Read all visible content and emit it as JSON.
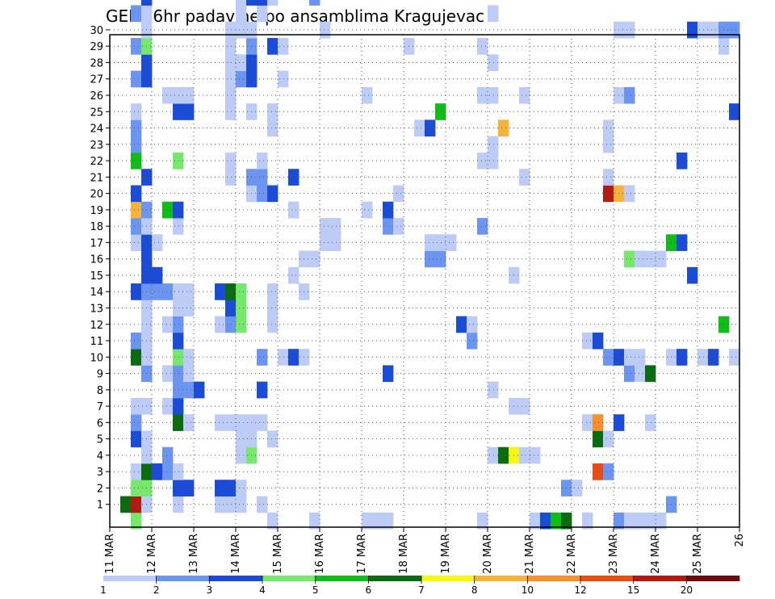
{
  "chart_data": {
    "type": "heatmap",
    "title": "GEFS 6hr padavine po ansamblima Kragujevac",
    "x_tick_labels": [
      "11 MAR",
      "12 MAR",
      "13 MAR",
      "14 MAR",
      "15 MAR",
      "16 MAR",
      "17 MAR",
      "18 MAR",
      "19 MAR",
      "20 MAR",
      "21 MAR",
      "22 MAR",
      "23 MAR",
      "24 MAR",
      "25 MAR",
      "26"
    ],
    "y_tick_labels": [
      "1",
      "2",
      "3",
      "4",
      "5",
      "6",
      "7",
      "8",
      "9",
      "10",
      "11",
      "12",
      "13",
      "14",
      "15",
      "16",
      "17",
      "18",
      "19",
      "20",
      "21",
      "22",
      "23",
      "24",
      "25",
      "26",
      "27",
      "28",
      "29",
      "30"
    ],
    "xlim": [
      0,
      60
    ],
    "ylim": [
      0,
      30
    ],
    "grid": true,
    "colorbar": {
      "levels": [
        1,
        2,
        3,
        4,
        5,
        6,
        7,
        8,
        10,
        12,
        15,
        20
      ],
      "colors": [
        "#bcccf6",
        "#6b95f0",
        "#1b4cd8",
        "#76e96d",
        "#10bc17",
        "#0b6b10",
        "#f7f714",
        "#f5b33c",
        "#f5902d",
        "#ea4a14",
        "#b51a12",
        "#6e0a0a"
      ]
    },
    "cells": [
      [
        2,
        0,
        4
      ],
      [
        1,
        1,
        6
      ],
      [
        2,
        1,
        11
      ],
      [
        15,
        0,
        1
      ],
      [
        19,
        0,
        1
      ],
      [
        24,
        0,
        1
      ],
      [
        25,
        0,
        1
      ],
      [
        26,
        0,
        1
      ],
      [
        40,
        0,
        1
      ],
      [
        35,
        0,
        1
      ],
      [
        41,
        0,
        3
      ],
      [
        42,
        0,
        5
      ],
      [
        43,
        0,
        6
      ],
      [
        45,
        0,
        1
      ],
      [
        48,
        0,
        2
      ],
      [
        49,
        0,
        1
      ],
      [
        50,
        0,
        1
      ],
      [
        51,
        0,
        1
      ],
      [
        52,
        0,
        1
      ],
      [
        3,
        1,
        1
      ],
      [
        6,
        1,
        1
      ],
      [
        10,
        1,
        1
      ],
      [
        11,
        1,
        1
      ],
      [
        12,
        1,
        1
      ],
      [
        14,
        1,
        1
      ],
      [
        53,
        1,
        2
      ],
      [
        2,
        2,
        4
      ],
      [
        3,
        2,
        4
      ],
      [
        6,
        2,
        3
      ],
      [
        7,
        2,
        3
      ],
      [
        10,
        2,
        3
      ],
      [
        11,
        2,
        3
      ],
      [
        12,
        2,
        1
      ],
      [
        43,
        2,
        2
      ],
      [
        44,
        2,
        1
      ],
      [
        2,
        3,
        1
      ],
      [
        3,
        3,
        6
      ],
      [
        4,
        3,
        3
      ],
      [
        5,
        3,
        2
      ],
      [
        6,
        3,
        1
      ],
      [
        46,
        3,
        10
      ],
      [
        47,
        3,
        2
      ],
      [
        3,
        4,
        1
      ],
      [
        5,
        4,
        2
      ],
      [
        12,
        4,
        1
      ],
      [
        13,
        4,
        4
      ],
      [
        36,
        4,
        1
      ],
      [
        37,
        4,
        6
      ],
      [
        38,
        4,
        7
      ],
      [
        39,
        4,
        1
      ],
      [
        40,
        4,
        1
      ],
      [
        2,
        5,
        3
      ],
      [
        3,
        5,
        1
      ],
      [
        12,
        5,
        1
      ],
      [
        13,
        5,
        1
      ],
      [
        15,
        5,
        1
      ],
      [
        46,
        5,
        6
      ],
      [
        47,
        5,
        1
      ],
      [
        2,
        6,
        2
      ],
      [
        6,
        6,
        6
      ],
      [
        7,
        6,
        1
      ],
      [
        10,
        6,
        1
      ],
      [
        11,
        6,
        1
      ],
      [
        12,
        6,
        1
      ],
      [
        13,
        6,
        1
      ],
      [
        14,
        6,
        1
      ],
      [
        45,
        6,
        1
      ],
      [
        46,
        6,
        9
      ],
      [
        48,
        6,
        3
      ],
      [
        51,
        6,
        1
      ],
      [
        2,
        7,
        1
      ],
      [
        3,
        7,
        1
      ],
      [
        5,
        7,
        1
      ],
      [
        6,
        7,
        3
      ],
      [
        38,
        7,
        1
      ],
      [
        39,
        7,
        1
      ],
      [
        6,
        8,
        2
      ],
      [
        7,
        8,
        2
      ],
      [
        8,
        8,
        3
      ],
      [
        14,
        8,
        3
      ],
      [
        36,
        8,
        1
      ],
      [
        3,
        9,
        2
      ],
      [
        5,
        9,
        1
      ],
      [
        6,
        9,
        2
      ],
      [
        7,
        9,
        1
      ],
      [
        26,
        9,
        3
      ],
      [
        49,
        9,
        2
      ],
      [
        50,
        9,
        1
      ],
      [
        51,
        9,
        6
      ],
      [
        2,
        10,
        6
      ],
      [
        3,
        10,
        1
      ],
      [
        6,
        10,
        4
      ],
      [
        7,
        10,
        1
      ],
      [
        14,
        10,
        2
      ],
      [
        16,
        10,
        1
      ],
      [
        17,
        10,
        3
      ],
      [
        18,
        10,
        1
      ],
      [
        47,
        10,
        2
      ],
      [
        48,
        10,
        3
      ],
      [
        49,
        10,
        1
      ],
      [
        50,
        10,
        1
      ],
      [
        53,
        10,
        1
      ],
      [
        54,
        10,
        3
      ],
      [
        56,
        10,
        1
      ],
      [
        57,
        10,
        3
      ],
      [
        59,
        10,
        1
      ],
      [
        2,
        11,
        2
      ],
      [
        3,
        11,
        1
      ],
      [
        6,
        11,
        3
      ],
      [
        34,
        11,
        2
      ],
      [
        45,
        11,
        1
      ],
      [
        46,
        11,
        3
      ],
      [
        3,
        12,
        1
      ],
      [
        5,
        12,
        1
      ],
      [
        6,
        12,
        2
      ],
      [
        10,
        12,
        1
      ],
      [
        11,
        12,
        2
      ],
      [
        12,
        12,
        4
      ],
      [
        15,
        12,
        1
      ],
      [
        33,
        12,
        3
      ],
      [
        34,
        12,
        1
      ],
      [
        58,
        12,
        5
      ],
      [
        3,
        13,
        1
      ],
      [
        6,
        13,
        1
      ],
      [
        7,
        13,
        1
      ],
      [
        11,
        13,
        3
      ],
      [
        12,
        13,
        4
      ],
      [
        15,
        13,
        1
      ],
      [
        2,
        14,
        3
      ],
      [
        3,
        14,
        2
      ],
      [
        4,
        14,
        2
      ],
      [
        5,
        14,
        2
      ],
      [
        6,
        14,
        1
      ],
      [
        7,
        14,
        1
      ],
      [
        10,
        14,
        3
      ],
      [
        11,
        14,
        6
      ],
      [
        12,
        14,
        4
      ],
      [
        15,
        14,
        1
      ],
      [
        18,
        14,
        1
      ],
      [
        3,
        15,
        3
      ],
      [
        4,
        15,
        3
      ],
      [
        17,
        15,
        1
      ],
      [
        38,
        15,
        1
      ],
      [
        55,
        15,
        3
      ],
      [
        3,
        16,
        3
      ],
      [
        18,
        16,
        1
      ],
      [
        19,
        16,
        1
      ],
      [
        30,
        16,
        2
      ],
      [
        31,
        16,
        2
      ],
      [
        49,
        16,
        4
      ],
      [
        50,
        16,
        1
      ],
      [
        51,
        16,
        1
      ],
      [
        52,
        16,
        1
      ],
      [
        2,
        17,
        1
      ],
      [
        3,
        17,
        3
      ],
      [
        4,
        17,
        1
      ],
      [
        20,
        17,
        1
      ],
      [
        21,
        17,
        1
      ],
      [
        30,
        17,
        1
      ],
      [
        31,
        17,
        1
      ],
      [
        32,
        17,
        1
      ],
      [
        53,
        17,
        5
      ],
      [
        54,
        17,
        3
      ],
      [
        2,
        18,
        2
      ],
      [
        3,
        18,
        1
      ],
      [
        6,
        18,
        1
      ],
      [
        20,
        18,
        1
      ],
      [
        21,
        18,
        1
      ],
      [
        26,
        18,
        2
      ],
      [
        27,
        18,
        1
      ],
      [
        35,
        18,
        2
      ],
      [
        2,
        19,
        8
      ],
      [
        3,
        19,
        2
      ],
      [
        5,
        19,
        5
      ],
      [
        6,
        19,
        3
      ],
      [
        17,
        19,
        1
      ],
      [
        24,
        19,
        1
      ],
      [
        26,
        19,
        3
      ],
      [
        2,
        20,
        3
      ],
      [
        13,
        20,
        1
      ],
      [
        14,
        20,
        2
      ],
      [
        15,
        20,
        3
      ],
      [
        27,
        20,
        1
      ],
      [
        47,
        20,
        11
      ],
      [
        48,
        20,
        8
      ],
      [
        49,
        20,
        1
      ],
      [
        3,
        21,
        3
      ],
      [
        11,
        21,
        1
      ],
      [
        13,
        21,
        2
      ],
      [
        14,
        21,
        2
      ],
      [
        17,
        21,
        3
      ],
      [
        39,
        21,
        1
      ],
      [
        47,
        21,
        1
      ],
      [
        2,
        22,
        5
      ],
      [
        6,
        22,
        4
      ],
      [
        11,
        22,
        1
      ],
      [
        14,
        22,
        1
      ],
      [
        35,
        22,
        1
      ],
      [
        36,
        22,
        1
      ],
      [
        54,
        22,
        3
      ],
      [
        2,
        23,
        2
      ],
      [
        36,
        23,
        1
      ],
      [
        47,
        23,
        1
      ],
      [
        2,
        24,
        2
      ],
      [
        15,
        24,
        1
      ],
      [
        29,
        24,
        1
      ],
      [
        30,
        24,
        3
      ],
      [
        37,
        24,
        8
      ],
      [
        47,
        24,
        1
      ],
      [
        2,
        25,
        1
      ],
      [
        6,
        25,
        3
      ],
      [
        7,
        25,
        3
      ],
      [
        11,
        25,
        1
      ],
      [
        13,
        25,
        1
      ],
      [
        15,
        25,
        1
      ],
      [
        31,
        25,
        5
      ],
      [
        59,
        25,
        3
      ],
      [
        5,
        26,
        1
      ],
      [
        6,
        26,
        1
      ],
      [
        7,
        26,
        1
      ],
      [
        11,
        26,
        1
      ],
      [
        24,
        26,
        1
      ],
      [
        35,
        26,
        1
      ],
      [
        36,
        26,
        1
      ],
      [
        39,
        26,
        1
      ],
      [
        48,
        26,
        1
      ],
      [
        49,
        26,
        2
      ],
      [
        2,
        27,
        2
      ],
      [
        3,
        27,
        3
      ],
      [
        11,
        27,
        1
      ],
      [
        12,
        27,
        2
      ],
      [
        13,
        27,
        3
      ],
      [
        16,
        27,
        1
      ],
      [
        3,
        28,
        3
      ],
      [
        11,
        28,
        1
      ],
      [
        12,
        28,
        1
      ],
      [
        13,
        28,
        3
      ],
      [
        36,
        28,
        1
      ],
      [
        2,
        29,
        2
      ],
      [
        3,
        29,
        4
      ],
      [
        11,
        29,
        1
      ],
      [
        13,
        29,
        2
      ],
      [
        15,
        29,
        3
      ],
      [
        16,
        29,
        1
      ],
      [
        28,
        29,
        1
      ],
      [
        35,
        29,
        1
      ],
      [
        58,
        29,
        1
      ],
      [
        3,
        30,
        1
      ],
      [
        11,
        30,
        1
      ],
      [
        12,
        30,
        1
      ],
      [
        13,
        30,
        1
      ],
      [
        20,
        30,
        1
      ],
      [
        48,
        30,
        1
      ],
      [
        49,
        30,
        1
      ],
      [
        55,
        30,
        3
      ],
      [
        56,
        30,
        1
      ],
      [
        57,
        30,
        1
      ],
      [
        58,
        30,
        2
      ],
      [
        59,
        30,
        2
      ],
      [
        2,
        31,
        2
      ],
      [
        3,
        31,
        1
      ],
      [
        12,
        31,
        1
      ],
      [
        14,
        31,
        1
      ],
      [
        36,
        31,
        1
      ],
      [
        3,
        32,
        3
      ],
      [
        12,
        32,
        1
      ],
      [
        13,
        32,
        3
      ],
      [
        14,
        32,
        3
      ],
      [
        15,
        32,
        1
      ],
      [
        19,
        32,
        2
      ],
      [
        2,
        33,
        2
      ],
      [
        11,
        33,
        1
      ],
      [
        13,
        33,
        5
      ],
      [
        14,
        33,
        3
      ],
      [
        15,
        33,
        3
      ],
      [
        53,
        33,
        5
      ],
      [
        54,
        33,
        1
      ],
      [
        4,
        34,
        1
      ],
      [
        5,
        34,
        1
      ],
      [
        6,
        34,
        1
      ],
      [
        7,
        34,
        1
      ],
      [
        11,
        34,
        1
      ],
      [
        12,
        34,
        1
      ],
      [
        18,
        34,
        1
      ],
      [
        25,
        34,
        1
      ],
      [
        43,
        34,
        5
      ],
      [
        44,
        34,
        1
      ],
      [
        45,
        34,
        1
      ],
      [
        46,
        34,
        5
      ],
      [
        2,
        35,
        1
      ],
      [
        3,
        35,
        1
      ],
      [
        5,
        35,
        1
      ],
      [
        6,
        35,
        5
      ],
      [
        7,
        35,
        2
      ],
      [
        8,
        35,
        2
      ],
      [
        28,
        35,
        1
      ],
      [
        36,
        35,
        1
      ],
      [
        59,
        35,
        3
      ],
      [
        2,
        36,
        5
      ],
      [
        3,
        36,
        4
      ],
      [
        4,
        36,
        5
      ],
      [
        5,
        36,
        2
      ],
      [
        7,
        36,
        2
      ],
      [
        10,
        36,
        2
      ],
      [
        11,
        36,
        1
      ],
      [
        12,
        36,
        1
      ],
      [
        13,
        36,
        1
      ],
      [
        59,
        36,
        3
      ],
      [
        2,
        37,
        3
      ],
      [
        3,
        37,
        4
      ],
      [
        4,
        37,
        5
      ],
      [
        5,
        37,
        1
      ],
      [
        12,
        37,
        3
      ],
      [
        14,
        37,
        1
      ],
      [
        54,
        37,
        2
      ],
      [
        55,
        37,
        5
      ]
    ]
  }
}
